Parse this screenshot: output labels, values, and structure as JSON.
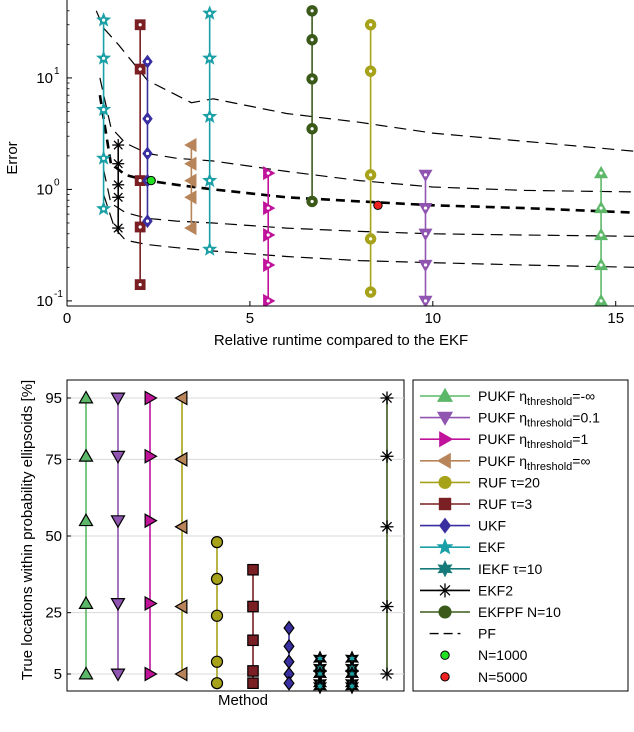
{
  "chart_data": [
    {
      "type": "scatter",
      "ylabel": "Error",
      "xlabel": "Relative runtime compared to the EKF",
      "ylog": true,
      "xlim": [
        0,
        15.5
      ],
      "ylim": [
        0.09,
        50
      ],
      "x_ticks": [
        0,
        5,
        10,
        15
      ],
      "x_tick_labels": [
        "0",
        "5",
        "10",
        "15"
      ],
      "y_ticks": [
        0.1,
        1,
        10
      ],
      "y_tick_labels": [
        "10",
        "10",
        "10"
      ],
      "y_tick_exponents": [
        "-1",
        "0",
        "1"
      ],
      "pf_curves": [
        {
          "role": "upper",
          "dash": "long",
          "points": [
            [
              0.8,
              40
            ],
            [
              1.0,
              28
            ],
            [
              1.4,
              20
            ],
            [
              2.2,
              9.5
            ],
            [
              3.4,
              6.0
            ],
            [
              4,
              6.5
            ],
            [
              6,
              4.8
            ],
            [
              8,
              4.0
            ],
            [
              10,
              3.2
            ],
            [
              12.5,
              2.7
            ],
            [
              15.5,
              2.2
            ]
          ]
        },
        {
          "role": "q-high",
          "dash": "long",
          "points": [
            [
              0.9,
              10
            ],
            [
              1.2,
              3.6
            ],
            [
              1.6,
              2.6
            ],
            [
              2.2,
              2.1
            ],
            [
              3,
              1.9
            ],
            [
              4,
              1.8
            ],
            [
              6,
              1.45
            ],
            [
              8,
              1.2
            ],
            [
              10,
              1.05
            ],
            [
              12.5,
              0.98
            ],
            [
              15.5,
              0.95
            ]
          ]
        },
        {
          "role": "median",
          "dash": "bold",
          "points": [
            [
              0.9,
              7
            ],
            [
              1.2,
              1.7
            ],
            [
              1.6,
              1.35
            ],
            [
              2.2,
              1.2
            ],
            [
              3,
              1.1
            ],
            [
              4,
              1.0
            ],
            [
              6,
              0.85
            ],
            [
              8,
              0.78
            ],
            [
              10,
              0.72
            ],
            [
              12.5,
              0.68
            ],
            [
              15.5,
              0.62
            ]
          ]
        },
        {
          "role": "q-low",
          "dash": "long",
          "points": [
            [
              1.0,
              1.5
            ],
            [
              1.2,
              0.75
            ],
            [
              1.6,
              0.62
            ],
            [
              2.2,
              0.55
            ],
            [
              3,
              0.52
            ],
            [
              4,
              0.5
            ],
            [
              6,
              0.45
            ],
            [
              8,
              0.42
            ],
            [
              10,
              0.4
            ],
            [
              12.5,
              0.39
            ],
            [
              15.5,
              0.38
            ]
          ]
        },
        {
          "role": "lower",
          "dash": "long",
          "points": [
            [
              1.0,
              0.9
            ],
            [
              1.3,
              0.45
            ],
            [
              1.6,
              0.35
            ],
            [
              2.2,
              0.32
            ],
            [
              3,
              0.3
            ],
            [
              4,
              0.28
            ],
            [
              6,
              0.25
            ],
            [
              8,
              0.23
            ],
            [
              10,
              0.22
            ],
            [
              12.5,
              0.21
            ],
            [
              15.5,
              0.2
            ]
          ]
        }
      ],
      "series": [
        {
          "marker": "star",
          "color": "#1aa0a6",
          "lineColor": "#1aa0a6",
          "inner": "white-dot",
          "x": 1.0,
          "y": [
            33,
            15,
            5.2,
            1.9,
            0.67
          ]
        },
        {
          "marker": "asterisk",
          "color": "#000000",
          "lineColor": "#000000",
          "inner": "none",
          "x": 1.4,
          "y": [
            2.5,
            1.7,
            1.1,
            0.85,
            0.45
          ]
        },
        {
          "marker": "square",
          "color": "#7a1f24",
          "lineColor": "#7a1f24",
          "inner": "white-dot",
          "x": 2.0,
          "y": [
            30,
            12,
            1.2,
            0.46,
            0.14
          ]
        },
        {
          "marker": "diamond",
          "color": "#3a2fa0",
          "lineColor": "#3a2fa0",
          "inner": "white-dot",
          "x": 2.2,
          "y": [
            14,
            4.3,
            2.1,
            1.2,
            0.52
          ]
        },
        {
          "marker": "tri-left",
          "color": "#b8845a",
          "lineColor": "#b8845a",
          "inner": "none",
          "x": 3.4,
          "y": [
            2.5,
            1.7,
            1.2,
            0.85,
            0.45
          ]
        },
        {
          "marker": "star",
          "color": "#1aa0a6",
          "lineColor": "#1aa0a6",
          "inner": "white-dot",
          "x": 3.9,
          "y": [
            38,
            15,
            4.5,
            1.2,
            0.29
          ]
        },
        {
          "marker": "tri-right",
          "color": "#c0139a",
          "lineColor": "#c0139a",
          "inner": "white-dot",
          "x": 5.5,
          "y": [
            1.4,
            0.68,
            0.39,
            0.21,
            0.1
          ]
        },
        {
          "marker": "circle",
          "color": "#3b5a1a",
          "lineColor": "#3b5a1a",
          "inner": "white-dot",
          "x": 6.7,
          "y": [
            40,
            22,
            9.8,
            3.5,
            0.78
          ]
        },
        {
          "marker": "circle",
          "color": "#a6a21a",
          "lineColor": "#a6a21a",
          "inner": "white-dot",
          "x": 8.3,
          "y": [
            30,
            11.5,
            1.35,
            0.36,
            0.12
          ]
        },
        {
          "marker": "tri-down",
          "color": "#9055b0",
          "lineColor": "#9055b0",
          "inner": "white-dot",
          "x": 9.8,
          "y": [
            1.35,
            0.68,
            0.4,
            0.21,
            0.1
          ]
        },
        {
          "marker": "tri-up",
          "color": "#5cb868",
          "lineColor": "#5cb868",
          "inner": "white-dot",
          "x": 14.6,
          "y": [
            1.4,
            0.68,
            0.39,
            0.21,
            0.1
          ]
        }
      ],
      "pf_points": [
        {
          "x": 2.3,
          "y": 1.2,
          "color": "#22e022"
        },
        {
          "x": 8.5,
          "y": 0.72,
          "color": "#ee2020"
        }
      ]
    },
    {
      "type": "scatter",
      "ylabel": "True locations  within probability ellipsoids [%]",
      "xlabel": "Method",
      "ylim": [
        0,
        100
      ],
      "y_ticks": [
        5,
        25,
        50,
        75,
        95
      ],
      "y_tick_labels": [
        "5",
        "25",
        "50",
        "75",
        "95"
      ],
      "columns": [
        {
          "marker": "tri-up",
          "color": "#5cb868",
          "lineColor": "#5cb868",
          "outline": "#000000",
          "y": [
            95,
            76,
            55,
            28,
            5
          ]
        },
        {
          "marker": "tri-down",
          "color": "#9055b0",
          "lineColor": "#9055b0",
          "outline": "#000000",
          "y": [
            95,
            76,
            55,
            28,
            5
          ]
        },
        {
          "marker": "tri-right",
          "color": "#c0139a",
          "lineColor": "#c0139a",
          "outline": "#000000",
          "y": [
            95,
            76,
            55,
            28,
            5
          ]
        },
        {
          "marker": "tri-left",
          "color": "#b8845a",
          "lineColor": "#a6a21a",
          "outline": "#000000",
          "y": [
            95,
            75,
            53,
            27,
            5
          ]
        },
        {
          "marker": "circle",
          "color": "#a6a21a",
          "lineColor": "#a6a21a",
          "outline": "#000000",
          "y": [
            48,
            36,
            24,
            9,
            2
          ]
        },
        {
          "marker": "square",
          "color": "#7a1f24",
          "lineColor": "#7a1f24",
          "outline": "#000000",
          "y": [
            39,
            27,
            16,
            6,
            2
          ]
        },
        {
          "marker": "diamond",
          "color": "#3a2fa0",
          "lineColor": "#3a2fa0",
          "outline": "#000000",
          "y": [
            20,
            14,
            9,
            5,
            2
          ]
        },
        {
          "marker": "star",
          "color": "#1aa0a6",
          "lineColor": "#1aa0a6",
          "outline": "#000000",
          "y": [
            10,
            7,
            5,
            2,
            1
          ]
        },
        {
          "marker": "star",
          "color": "#1aa0a6",
          "lineColor": "#1aa0a6",
          "outline": "#000000",
          "y": [
            10,
            7,
            5,
            2,
            1
          ]
        },
        {
          "marker": "asterisk",
          "color": "#000000",
          "lineColor": "#3b5a1a",
          "outline": "#000000",
          "y": [
            95,
            76,
            53,
            27,
            5
          ]
        }
      ]
    }
  ],
  "legend": [
    {
      "marker": "tri-up",
      "color": "#5cb868",
      "label": "PUKF η",
      "sub": "threshold",
      "suffix": "=-∞"
    },
    {
      "marker": "tri-down",
      "color": "#9055b0",
      "label": "PUKF η",
      "sub": "threshold",
      "suffix": "=0.1"
    },
    {
      "marker": "tri-right",
      "color": "#c0139a",
      "label": "PUKF η",
      "sub": "threshold",
      "suffix": "=1"
    },
    {
      "marker": "tri-left",
      "color": "#b8845a",
      "label": "PUKF η",
      "sub": "threshold",
      "suffix": "=∞"
    },
    {
      "marker": "circle",
      "color": "#a6a21a",
      "label": "RUF τ=20",
      "sub": "",
      "suffix": ""
    },
    {
      "marker": "square",
      "color": "#7a1f24",
      "label": "RUF τ=3",
      "sub": "",
      "suffix": ""
    },
    {
      "marker": "diamond",
      "color": "#3a2fa0",
      "label": "UKF",
      "sub": "",
      "suffix": ""
    },
    {
      "marker": "star",
      "color": "#1aa0a6",
      "label": "EKF",
      "sub": "",
      "suffix": ""
    },
    {
      "marker": "star6",
      "color": "#177a7a",
      "label": "IEKF τ=10",
      "sub": "",
      "suffix": ""
    },
    {
      "marker": "asterisk",
      "color": "#000000",
      "label": "EKF2",
      "sub": "",
      "suffix": ""
    },
    {
      "marker": "circle",
      "color": "#3b5a1a",
      "label": "EKFPF N=10",
      "sub": "",
      "suffix": ""
    },
    {
      "marker": "dash",
      "color": "#000000",
      "label": "PF",
      "sub": "",
      "suffix": ""
    },
    {
      "marker": "dot",
      "color": "#22e022",
      "label": "N=1000",
      "sub": "",
      "suffix": ""
    },
    {
      "marker": "dot",
      "color": "#ee2020",
      "label": "N=5000",
      "sub": "",
      "suffix": ""
    }
  ]
}
